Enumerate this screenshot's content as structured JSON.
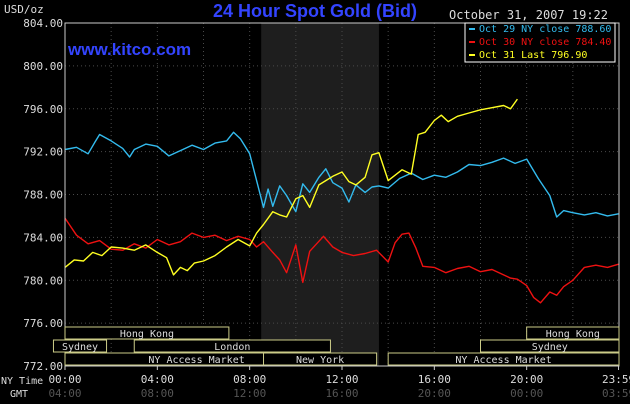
{
  "chart_data": {
    "type": "line",
    "title": "24 Hour Spot Gold (Bid)",
    "brand": "www.kitco.com",
    "timestamp": "October 31, 2007 19:22",
    "ylabel": "USD/oz",
    "ylim": [
      772,
      804
    ],
    "y_ticks": [
      "804.00",
      "800.00",
      "796.00",
      "792.00",
      "788.00",
      "784.00",
      "780.00",
      "776.00",
      "772.00"
    ],
    "x_ticks_ny": [
      "00:00",
      "04:00",
      "08:00",
      "12:00",
      "16:00",
      "20:00",
      "23:59"
    ],
    "x_ticks_gmt": [
      "04:00",
      "08:00",
      "12:00",
      "16:00",
      "20:00",
      "00:00",
      "03:59"
    ],
    "x_axis_labels": {
      "ny": "NY Time",
      "gmt": "GMT"
    },
    "grid": true,
    "legend_position": "top-right",
    "series": [
      {
        "name": "Oct 29 NY close 788.60",
        "color": "#33bbee",
        "x": [
          0,
          0.5,
          1,
          1.3,
          1.5,
          2,
          2.5,
          2.8,
          3,
          3.5,
          4,
          4.5,
          5,
          5.5,
          6,
          6.5,
          7,
          7.3,
          7.6,
          8,
          8.3,
          8.6,
          8.8,
          9,
          9.3,
          9.6,
          10,
          10.3,
          10.6,
          11,
          11.3,
          11.6,
          12,
          12.3,
          12.6,
          13,
          13.3,
          13.6,
          14,
          14.5,
          15,
          15.5,
          16,
          16.5,
          17,
          17.5,
          18,
          18.5,
          19,
          19.5,
          20,
          20.5,
          21,
          21.3,
          21.6,
          22,
          22.5,
          23,
          23.5,
          23.98
        ],
        "y": [
          792.2,
          792.4,
          791.8,
          792.9,
          793.6,
          793.0,
          792.3,
          791.5,
          792.2,
          792.7,
          792.5,
          791.6,
          792.1,
          792.6,
          792.2,
          792.8,
          793.0,
          793.8,
          793.2,
          791.8,
          789.3,
          786.8,
          788.5,
          786.9,
          788.8,
          787.9,
          786.4,
          789.0,
          788.2,
          789.6,
          790.4,
          789.1,
          788.6,
          787.3,
          788.9,
          788.2,
          788.7,
          788.8,
          788.6,
          789.5,
          790.0,
          789.4,
          789.8,
          789.6,
          790.1,
          790.8,
          790.7,
          791.0,
          791.4,
          790.9,
          791.3,
          789.5,
          787.9,
          785.9,
          786.5,
          786.3,
          786.1,
          786.3,
          786.0,
          786.2
        ]
      },
      {
        "name": "Oct 30 NY close 784.40",
        "color": "#ee1111",
        "x": [
          0,
          0.5,
          1,
          1.5,
          2,
          2.5,
          3,
          3.5,
          4,
          4.5,
          5,
          5.5,
          6,
          6.5,
          7,
          7.5,
          8,
          8.3,
          8.6,
          9,
          9.3,
          9.6,
          10,
          10.3,
          10.6,
          10.9,
          11.2,
          11.6,
          12,
          12.5,
          13,
          13.5,
          14,
          14.3,
          14.6,
          14.9,
          15.2,
          15.5,
          16,
          16.5,
          17,
          17.5,
          18,
          18.5,
          19,
          19.3,
          19.6,
          20,
          20.3,
          20.6,
          21,
          21.3,
          21.6,
          22,
          22.5,
          23,
          23.5,
          23.98
        ],
        "y": [
          785.8,
          784.2,
          783.4,
          783.7,
          782.9,
          782.8,
          783.4,
          783.0,
          783.8,
          783.3,
          783.6,
          784.4,
          784.0,
          784.2,
          783.7,
          784.1,
          783.8,
          783.1,
          783.6,
          782.6,
          781.9,
          780.7,
          783.3,
          779.8,
          782.7,
          783.4,
          784.1,
          783.1,
          782.6,
          782.3,
          782.5,
          782.8,
          781.7,
          783.5,
          784.3,
          784.4,
          783.0,
          781.3,
          781.2,
          780.7,
          781.1,
          781.3,
          780.8,
          781.0,
          780.5,
          780.2,
          780.1,
          779.5,
          778.4,
          777.9,
          778.9,
          778.6,
          779.4,
          780.0,
          781.2,
          781.4,
          781.2,
          781.5
        ]
      },
      {
        "name": "Oct 31 Last 796.90",
        "color": "#ffff22",
        "x": [
          0,
          0.4,
          0.8,
          1.2,
          1.6,
          2,
          2.5,
          3,
          3.5,
          4,
          4.4,
          4.7,
          5,
          5.3,
          5.6,
          6,
          6.5,
          7,
          7.5,
          8,
          8.3,
          8.6,
          9,
          9.3,
          9.6,
          10,
          10.3,
          10.6,
          11,
          11.3,
          11.6,
          12,
          12.3,
          12.6,
          13,
          13.3,
          13.6,
          14,
          14.3,
          14.6,
          15,
          15.3,
          15.6,
          16,
          16.3,
          16.6,
          17,
          17.5,
          18,
          18.5,
          19,
          19.3,
          19.6
        ],
        "y": [
          781.2,
          781.9,
          781.8,
          782.6,
          782.3,
          783.1,
          783.0,
          782.8,
          783.3,
          782.6,
          782.1,
          780.5,
          781.2,
          780.9,
          781.6,
          781.8,
          782.3,
          783.1,
          783.8,
          783.2,
          784.4,
          785.2,
          786.4,
          786.1,
          785.9,
          787.6,
          787.9,
          786.8,
          788.9,
          789.3,
          789.7,
          790.1,
          789.2,
          788.9,
          789.6,
          791.7,
          791.9,
          789.3,
          789.8,
          790.3,
          789.9,
          793.6,
          793.8,
          794.9,
          795.4,
          794.8,
          795.3,
          795.6,
          795.9,
          796.1,
          796.3,
          796.0,
          796.9
        ]
      }
    ],
    "session_bars": [
      {
        "label": "Hong Kong",
        "start": 0.0,
        "end": 7.1
      },
      {
        "label": "Sydney",
        "start": -0.5,
        "end": 1.8
      },
      {
        "label": "London",
        "start": 3.0,
        "end": 11.5
      },
      {
        "label": "NY Access Market",
        "start": 0.0,
        "end": 11.4
      },
      {
        "label": "New York",
        "start": 8.6,
        "end": 13.5
      },
      {
        "label": "NY Access Market",
        "start": 14.0,
        "end": 24.0
      },
      {
        "label": "Hong Kong",
        "start": 20.0,
        "end": 24.0
      },
      {
        "label": "Sydney",
        "start": 18.0,
        "end": 24.0
      }
    ],
    "highlight_band_hours": [
      8.5,
      13.6
    ]
  }
}
